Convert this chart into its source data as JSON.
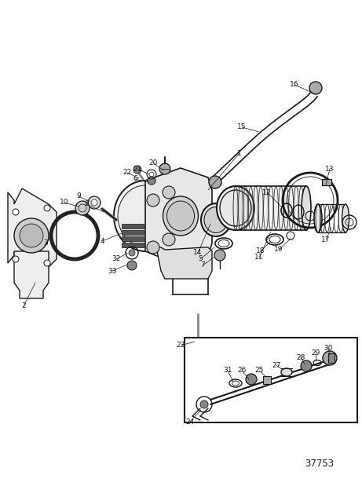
{
  "bg_color": "#ffffff",
  "line_color": "#1a1a1a",
  "fig_width": 4.61,
  "fig_height": 6.1,
  "dpi": 100,
  "part_number": "37753"
}
